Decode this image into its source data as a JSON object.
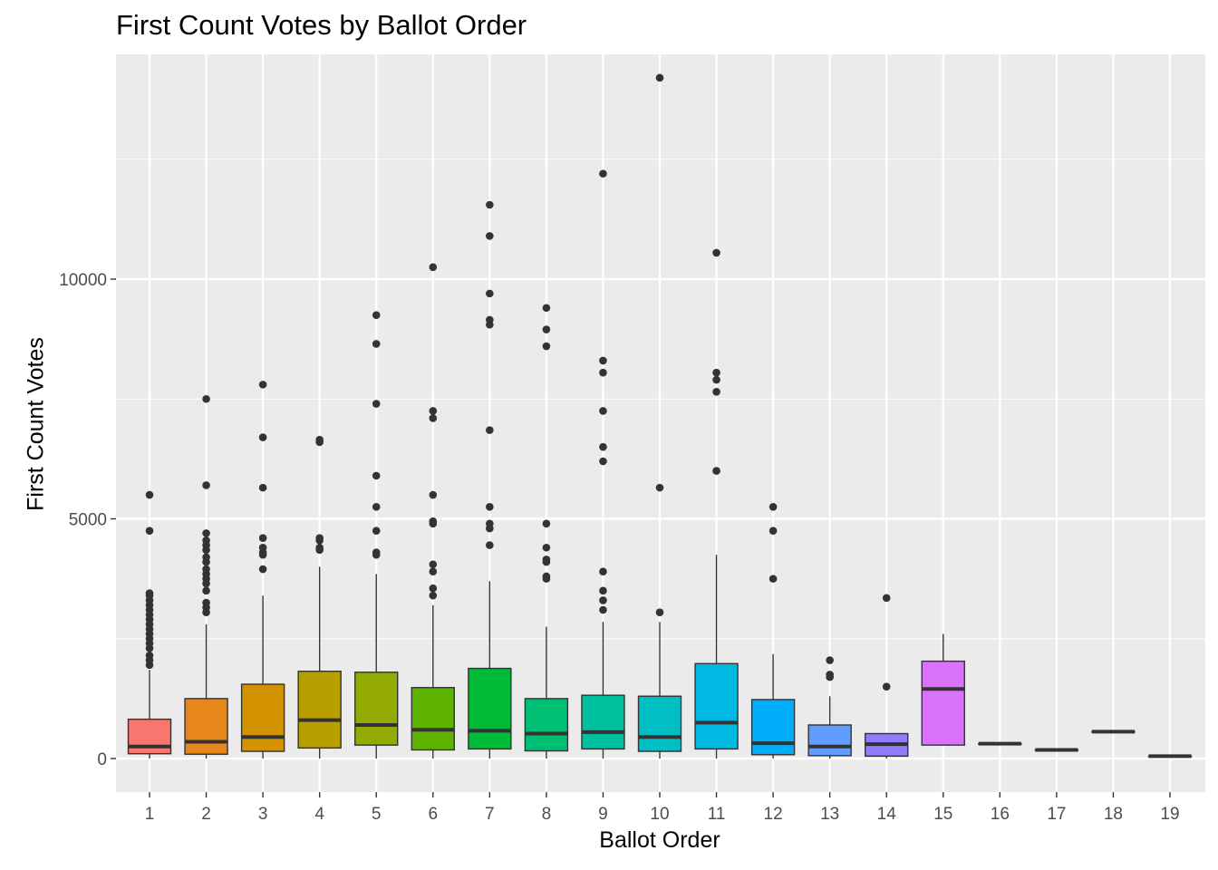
{
  "chart_data": {
    "type": "boxplot",
    "title": "First Count Votes by Ballot Order",
    "xlabel": "Ballot Order",
    "ylabel": "First Count Votes",
    "categories": [
      "1",
      "2",
      "3",
      "4",
      "5",
      "6",
      "7",
      "8",
      "9",
      "10",
      "11",
      "12",
      "13",
      "14",
      "15",
      "16",
      "17",
      "18",
      "19"
    ],
    "ylim": [
      -700,
      14400
    ],
    "y_ticks": [
      0,
      5000,
      10000
    ],
    "y_tick_labels": [
      "0",
      "5000",
      "10000"
    ],
    "grid": true,
    "legend": "none",
    "panel_background": "#EBEBEB",
    "grid_color": "#FFFFFF",
    "box_outline_color": "#333333",
    "fill_colors": [
      "#F8766D",
      "#E7861B",
      "#D39200",
      "#B79F00",
      "#93AA00",
      "#5EB300",
      "#00BA38",
      "#00BF74",
      "#00C19F",
      "#00BFC4",
      "#00B9E3",
      "#00ADFA",
      "#619CFF",
      "#8F7CFF",
      "#DB72FB",
      "#F564E3",
      "#FF61C3",
      "#FF6C91",
      "#F8766D"
    ],
    "boxes": [
      {
        "category": "1",
        "low": 0,
        "q1": 100,
        "median": 250,
        "q3": 820,
        "high": 1850,
        "outliers": [
          1950,
          2050,
          2150,
          2300,
          2400,
          2500,
          2600,
          2700,
          2800,
          2900,
          3000,
          3100,
          3200,
          3300,
          3400,
          3450,
          4750,
          5500
        ]
      },
      {
        "category": "2",
        "low": 0,
        "q1": 90,
        "median": 350,
        "q3": 1250,
        "high": 2800,
        "outliers": [
          3050,
          3150,
          3250,
          3500,
          3650,
          3750,
          3850,
          3950,
          4100,
          4200,
          4350,
          4450,
          4550,
          4700,
          5700,
          7500
        ]
      },
      {
        "category": "3",
        "low": 0,
        "q1": 150,
        "median": 450,
        "q3": 1550,
        "high": 3400,
        "outliers": [
          3950,
          4250,
          4300,
          4400,
          4600,
          5650,
          6700,
          7800
        ]
      },
      {
        "category": "4",
        "low": 0,
        "q1": 220,
        "median": 800,
        "q3": 1820,
        "high": 4000,
        "outliers": [
          4350,
          4400,
          4550,
          4600,
          6600,
          6650
        ]
      },
      {
        "category": "5",
        "low": 0,
        "q1": 280,
        "median": 700,
        "q3": 1800,
        "high": 3850,
        "outliers": [
          4250,
          4300,
          4750,
          5250,
          5900,
          7400,
          8650,
          9250
        ]
      },
      {
        "category": "6",
        "low": 0,
        "q1": 180,
        "median": 600,
        "q3": 1480,
        "high": 3200,
        "outliers": [
          3400,
          3550,
          3900,
          4050,
          4900,
          4950,
          5500,
          7100,
          7250,
          10250
        ]
      },
      {
        "category": "7",
        "low": 0,
        "q1": 200,
        "median": 580,
        "q3": 1880,
        "high": 3700,
        "outliers": [
          4450,
          4800,
          4900,
          5250,
          6850,
          9050,
          9150,
          9700,
          10900,
          11550
        ]
      },
      {
        "category": "8",
        "low": 0,
        "q1": 160,
        "median": 520,
        "q3": 1250,
        "high": 2750,
        "outliers": [
          3750,
          3800,
          4100,
          4150,
          4400,
          4900,
          8600,
          8950,
          9400
        ]
      },
      {
        "category": "9",
        "low": 0,
        "q1": 200,
        "median": 550,
        "q3": 1320,
        "high": 2850,
        "outliers": [
          3100,
          3300,
          3500,
          3900,
          6200,
          6500,
          7250,
          8050,
          8300,
          12200
        ]
      },
      {
        "category": "10",
        "low": 0,
        "q1": 150,
        "median": 450,
        "q3": 1300,
        "high": 2850,
        "outliers": [
          3050,
          5650,
          14200
        ]
      },
      {
        "category": "11",
        "low": 0,
        "q1": 200,
        "median": 750,
        "q3": 1980,
        "high": 4250,
        "outliers": [
          6000,
          7650,
          7900,
          8050,
          10550
        ]
      },
      {
        "category": "12",
        "low": 0,
        "q1": 80,
        "median": 320,
        "q3": 1230,
        "high": 2180,
        "outliers": [
          3750,
          4750,
          5250
        ]
      },
      {
        "category": "13",
        "low": 0,
        "q1": 60,
        "median": 250,
        "q3": 700,
        "high": 1300,
        "outliers": [
          1700,
          1750,
          2050
        ]
      },
      {
        "category": "14",
        "low": 0,
        "q1": 50,
        "median": 300,
        "q3": 520,
        "high": 520,
        "outliers": [
          1500,
          3350
        ]
      },
      {
        "category": "15",
        "low": 280,
        "q1": 280,
        "median": 1450,
        "q3": 2030,
        "high": 2600,
        "outliers": []
      },
      {
        "category": "16",
        "low": 310,
        "q1": 310,
        "median": 310,
        "q3": 310,
        "high": 310,
        "outliers": []
      },
      {
        "category": "17",
        "low": 180,
        "q1": 180,
        "median": 180,
        "q3": 180,
        "high": 180,
        "outliers": []
      },
      {
        "category": "18",
        "low": 560,
        "q1": 560,
        "median": 560,
        "q3": 560,
        "high": 560,
        "outliers": []
      },
      {
        "category": "19",
        "low": 50,
        "q1": 50,
        "median": 50,
        "q3": 50,
        "high": 50,
        "outliers": []
      }
    ]
  }
}
